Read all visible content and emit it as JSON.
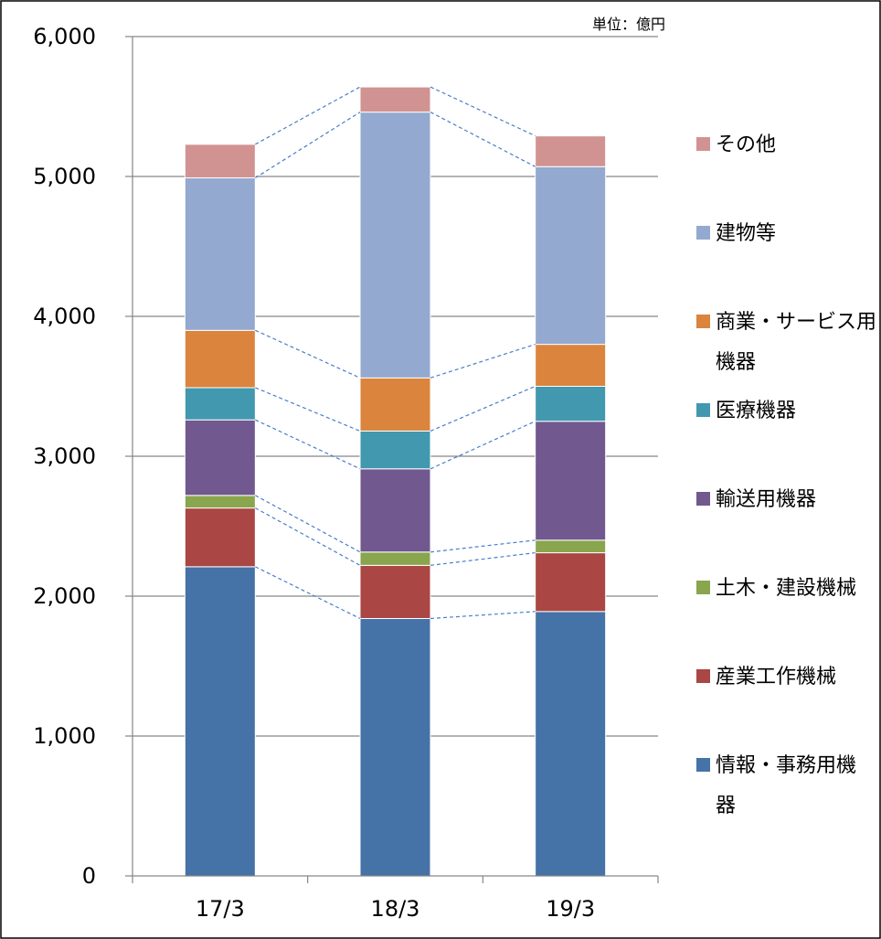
{
  "chart_data": {
    "type": "bar",
    "stacked": true,
    "unit_label": "単位：億円",
    "categories": [
      "17/3",
      "18/3",
      "19/3"
    ],
    "ylim": [
      0,
      6000
    ],
    "yticks": [
      0,
      1000,
      2000,
      3000,
      4000,
      5000,
      6000
    ],
    "ytick_labels": [
      "0",
      "1,000",
      "2,000",
      "3,000",
      "4,000",
      "5,000",
      "6,000"
    ],
    "grid": true,
    "legend_position": "right",
    "connector_lines": true,
    "series": [
      {
        "name": "情報・事務用機器",
        "legend_lines": [
          "情報・事務用機",
          "器"
        ],
        "color": "#4572A7",
        "values": [
          2210,
          1840,
          1890
        ]
      },
      {
        "name": "産業工作機械",
        "legend_lines": [
          "産業工作機械"
        ],
        "color": "#AA4643",
        "values": [
          420,
          380,
          420
        ]
      },
      {
        "name": "土木・建設機械",
        "legend_lines": [
          "土木・建設機械"
        ],
        "color": "#89A54E",
        "values": [
          90,
          95,
          90
        ]
      },
      {
        "name": "輸送用機器",
        "legend_lines": [
          "輸送用機器"
        ],
        "color": "#71588F",
        "values": [
          540,
          595,
          850
        ]
      },
      {
        "name": "医療機器",
        "legend_lines": [
          "医療機器"
        ],
        "color": "#4198AF",
        "values": [
          230,
          270,
          250
        ]
      },
      {
        "name": "商業・サービス用機器",
        "legend_lines": [
          "商業・サービス用",
          "機器"
        ],
        "color": "#DB843D",
        "values": [
          410,
          380,
          300
        ]
      },
      {
        "name": "建物等",
        "legend_lines": [
          "建物等"
        ],
        "color": "#93A9CF",
        "values": [
          1090,
          1900,
          1270
        ]
      },
      {
        "name": "その他",
        "legend_lines": [
          "その他"
        ],
        "color": "#D19392",
        "values": [
          240,
          180,
          220
        ]
      }
    ]
  }
}
